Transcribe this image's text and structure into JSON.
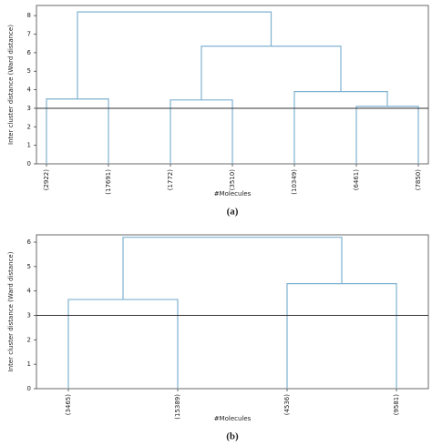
{
  "chart_data": [
    {
      "type": "dendrogram",
      "caption": "(a)",
      "ylabel": "Inter cluster distance (Ward distance)",
      "xlabel": "#Molecules",
      "leaves": [
        "(2922)",
        "(17691)",
        "(1772)",
        "(3510)",
        "(10349)",
        "(6461)",
        "(7850)"
      ],
      "links": [
        {
          "left": 0,
          "right": 1,
          "height": 3.5
        },
        {
          "left": 2,
          "right": 3,
          "height": 3.45
        },
        {
          "left": 5,
          "right": 6,
          "height": 3.1
        },
        {
          "left": 4,
          "right": 9,
          "height": 3.9
        },
        {
          "left": 8,
          "right": 10,
          "height": 6.35
        },
        {
          "left": 7,
          "right": 11,
          "height": 8.2
        }
      ],
      "threshold": 3,
      "color": "#7fb2d0",
      "ylim": [
        0,
        8.55
      ],
      "yticks": [
        0,
        1,
        2,
        3,
        4,
        5,
        6,
        7,
        8
      ]
    },
    {
      "type": "dendrogram",
      "caption": "(b)",
      "ylabel": "Inter cluster distance (Ward distance)",
      "xlabel": "#Molecules",
      "leaves": [
        "(3465)",
        "(15389)",
        "(4536)",
        "(9581)"
      ],
      "links": [
        {
          "left": 0,
          "right": 1,
          "height": 3.65
        },
        {
          "left": 2,
          "right": 3,
          "height": 4.3
        },
        {
          "left": 4,
          "right": 5,
          "height": 6.2
        }
      ],
      "threshold": 3,
      "color": "#7fb2d0",
      "ylim": [
        0,
        6.3
      ],
      "yticks": [
        0,
        1,
        2,
        3,
        4,
        5,
        6
      ]
    }
  ]
}
